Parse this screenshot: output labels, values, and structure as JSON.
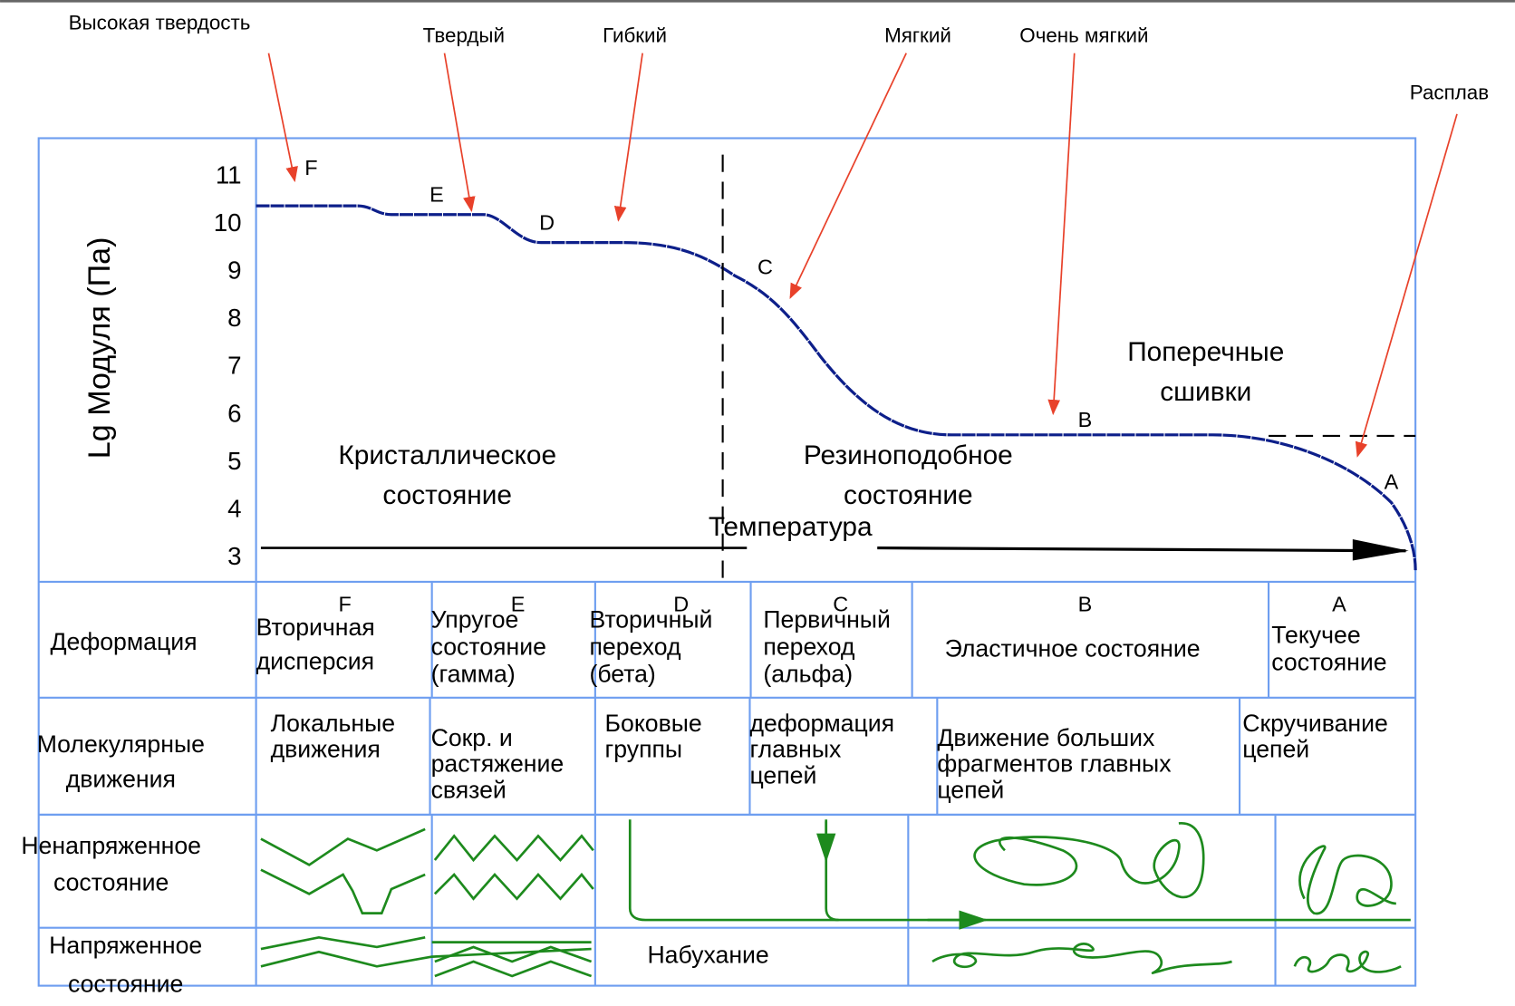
{
  "annotations": [
    "Высокая твердость",
    "Твердый",
    "Гибкий",
    "Мягкий",
    "Очень мягкий",
    "Расплав"
  ],
  "y_axis_label": "Lg Модуля (Па)",
  "y_ticks": [
    "11",
    "10",
    "9",
    "8",
    "7",
    "6",
    "5",
    "4",
    "3"
  ],
  "curve_letters": [
    "F",
    "E",
    "D",
    "C",
    "B",
    "A"
  ],
  "region_labels": [
    [
      "Кристаллическое",
      "состояние"
    ],
    [
      "Резиноподобное",
      "состояние"
    ],
    [
      "Поперечные",
      "сшивки"
    ]
  ],
  "axis_arrow_label": "Температура",
  "table": {
    "rows": [
      {
        "label": [
          "Деформация"
        ],
        "cells": [
          {
            "letter": "F",
            "lines": [
              "Вторичная",
              "дисперсия"
            ]
          },
          {
            "letter": "E",
            "lines": [
              "Упругое",
              "состояние",
              "(гамма)"
            ]
          },
          {
            "letter": "D",
            "lines": [
              "Вторичный",
              "переход",
              "(бета)"
            ]
          },
          {
            "letter": "C",
            "lines": [
              "Первичный",
              "переход",
              "(альфа)"
            ]
          },
          {
            "letter": "B",
            "lines": [
              "Эластичное состояние"
            ]
          },
          {
            "letter": "A",
            "lines": [
              "Текучее",
              "состояние"
            ]
          }
        ]
      },
      {
        "label": [
          "Молекулярные",
          "движения"
        ],
        "cells": [
          {
            "lines": [
              "Локальные",
              "движения"
            ]
          },
          {
            "lines": [
              "Сокр. и",
              "растяжение",
              "связей"
            ]
          },
          {
            "lines": [
              "Боковые",
              "группы"
            ]
          },
          {
            "lines": [
              "деформация",
              "главных",
              "цепей"
            ]
          },
          {
            "lines": [
              "Движение больших",
              "фрагментов главных",
              "цепей"
            ]
          },
          {
            "lines": [
              "Скручивание",
              "цепей"
            ]
          }
        ]
      },
      {
        "label": [
          "Ненапряженное",
          "состояние"
        ],
        "cells": []
      },
      {
        "label": [
          "Напряженное",
          "состояние"
        ],
        "cells": [
          {
            "lines": [
              "Набухание"
            ]
          }
        ]
      }
    ]
  }
}
